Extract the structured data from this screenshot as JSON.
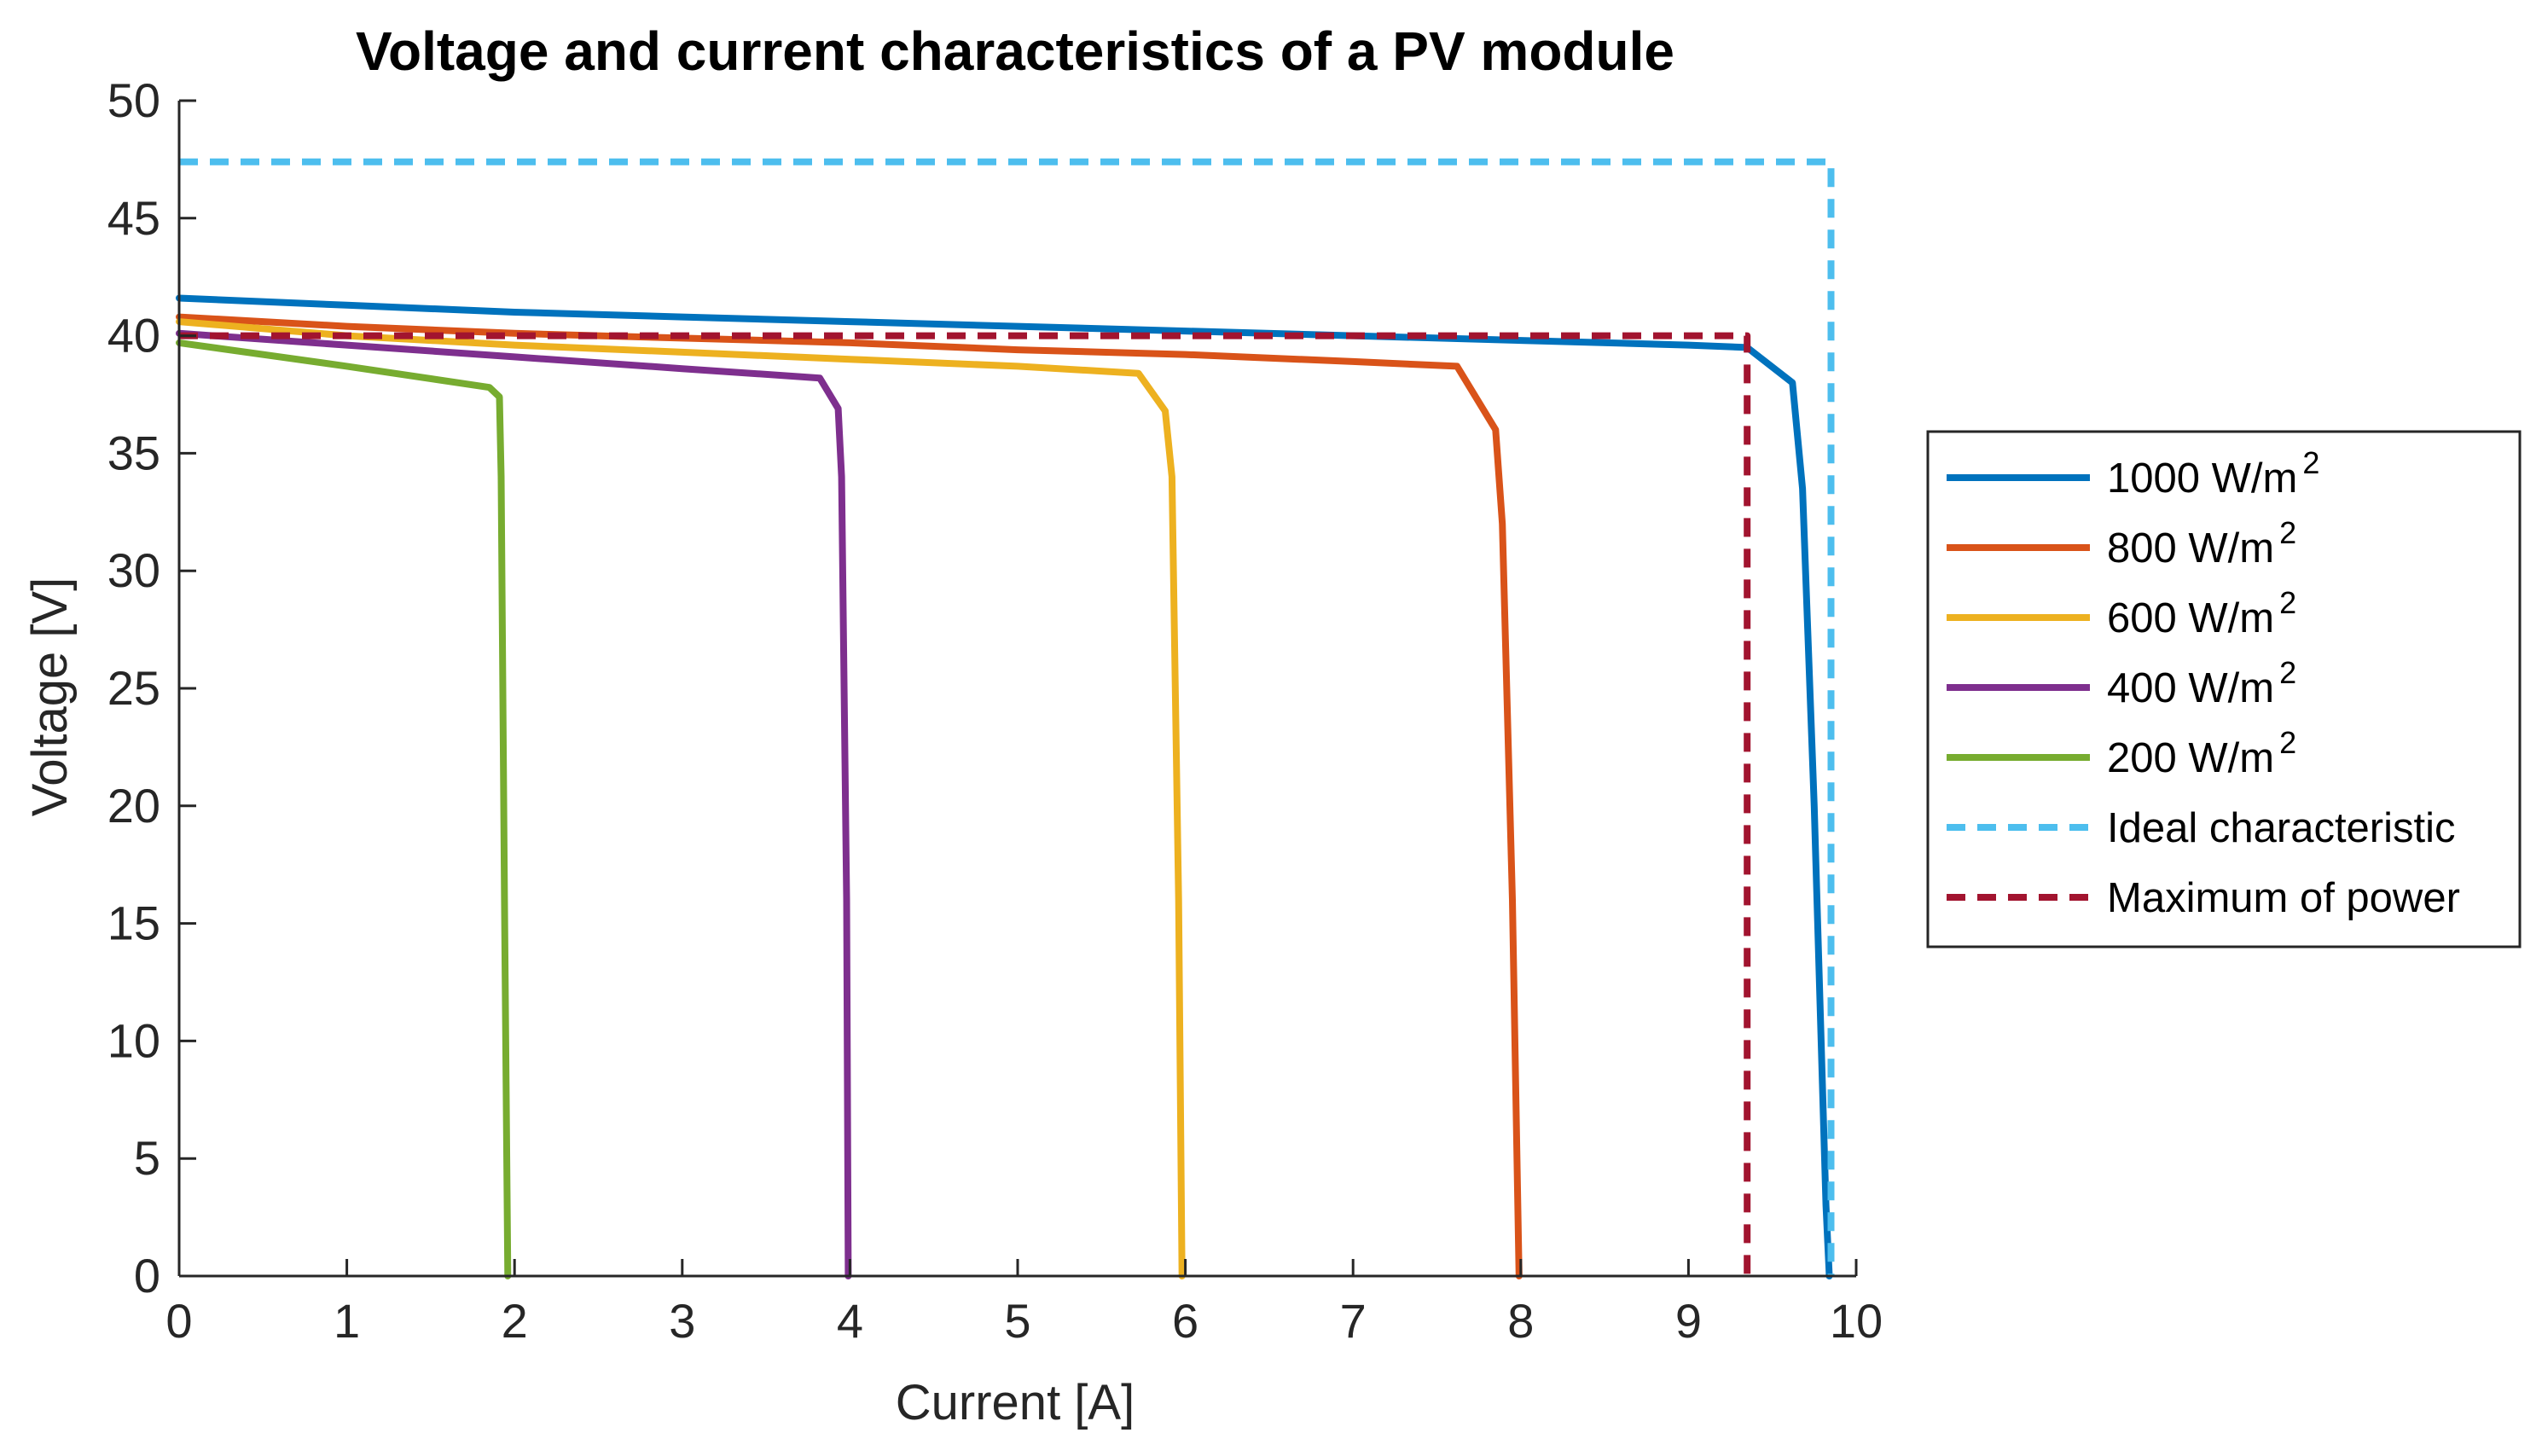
{
  "chart_data": {
    "type": "line",
    "title": "Voltage and current characteristics of a PV module",
    "xlabel": "Current [A]",
    "ylabel": "Voltage [V]",
    "xlim": [
      0,
      10
    ],
    "ylim": [
      0,
      50
    ],
    "xticks": [
      "0",
      "1",
      "2",
      "3",
      "4",
      "5",
      "6",
      "7",
      "8",
      "9",
      "10"
    ],
    "yticks": [
      "0",
      "5",
      "10",
      "15",
      "20",
      "25",
      "30",
      "35",
      "40",
      "45",
      "50"
    ],
    "grid": false,
    "legend_position": "outside-right",
    "series": [
      {
        "name": "1000 W/m",
        "name_superscript": "2",
        "color": "#0072BD",
        "style": "solid",
        "points": [
          [
            0,
            41.6
          ],
          [
            1,
            41.3
          ],
          [
            2,
            41.0
          ],
          [
            3,
            40.8
          ],
          [
            4,
            40.6
          ],
          [
            5,
            40.4
          ],
          [
            6,
            40.2
          ],
          [
            7,
            40.0
          ],
          [
            8,
            39.8
          ],
          [
            9,
            39.6
          ],
          [
            9.35,
            39.5
          ],
          [
            9.62,
            38.0
          ],
          [
            9.68,
            33.5
          ],
          [
            9.75,
            20.0
          ],
          [
            9.82,
            3.0
          ],
          [
            9.84,
            0
          ]
        ]
      },
      {
        "name": "800 W/m",
        "name_superscript": "2",
        "color": "#D95319",
        "style": "solid",
        "points": [
          [
            0,
            40.8
          ],
          [
            1,
            40.4
          ],
          [
            2,
            40.1
          ],
          [
            3,
            39.9
          ],
          [
            4,
            39.7
          ],
          [
            5,
            39.4
          ],
          [
            6,
            39.2
          ],
          [
            7,
            38.9
          ],
          [
            7.62,
            38.7
          ],
          [
            7.85,
            36.0
          ],
          [
            7.89,
            32.0
          ],
          [
            7.95,
            16.0
          ],
          [
            7.99,
            0
          ]
        ]
      },
      {
        "name": "600 W/m",
        "name_superscript": "2",
        "color": "#EDB120",
        "style": "solid",
        "points": [
          [
            0,
            40.6
          ],
          [
            1,
            40.0
          ],
          [
            2,
            39.6
          ],
          [
            3,
            39.3
          ],
          [
            4,
            39.0
          ],
          [
            5,
            38.7
          ],
          [
            5.72,
            38.4
          ],
          [
            5.88,
            36.8
          ],
          [
            5.92,
            34.0
          ],
          [
            5.96,
            16.0
          ],
          [
            5.98,
            0
          ]
        ]
      },
      {
        "name": "400 W/m",
        "name_superscript": "2",
        "color": "#7E2F8E",
        "style": "solid",
        "points": [
          [
            0,
            40.1
          ],
          [
            1,
            39.6
          ],
          [
            2,
            39.1
          ],
          [
            3,
            38.6
          ],
          [
            3.82,
            38.2
          ],
          [
            3.93,
            36.9
          ],
          [
            3.95,
            34.0
          ],
          [
            3.98,
            16.0
          ],
          [
            3.99,
            0
          ]
        ]
      },
      {
        "name": "200 W/m",
        "name_superscript": "2",
        "color": "#77AC30",
        "style": "solid",
        "points": [
          [
            0,
            39.7
          ],
          [
            1,
            38.7
          ],
          [
            1.85,
            37.8
          ],
          [
            1.91,
            37.4
          ],
          [
            1.92,
            34.0
          ],
          [
            1.94,
            16.0
          ],
          [
            1.96,
            0
          ]
        ]
      },
      {
        "name": "Ideal characteristic",
        "color": "#4DBEEE",
        "style": "dashed",
        "points": [
          [
            0,
            47.4
          ],
          [
            9.85,
            47.4
          ],
          [
            9.85,
            0
          ]
        ]
      },
      {
        "name": "Maximum of power",
        "color": "#A2142F",
        "style": "dashed",
        "points": [
          [
            0,
            40.0
          ],
          [
            9.35,
            40.0
          ],
          [
            9.35,
            0
          ]
        ]
      }
    ]
  }
}
